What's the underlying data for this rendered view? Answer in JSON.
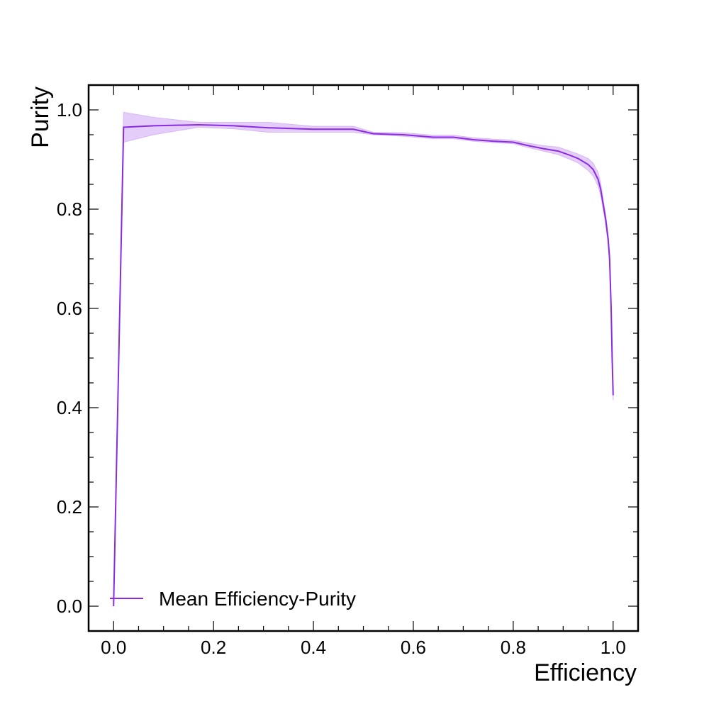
{
  "chart_data": {
    "type": "line",
    "xlabel": "Efficiency",
    "ylabel": "Purity",
    "xlim": [
      -0.05,
      1.05
    ],
    "ylim": [
      -0.05,
      1.05
    ],
    "xticks": [
      0.0,
      0.2,
      0.4,
      0.6,
      0.8,
      1.0
    ],
    "yticks": [
      0.0,
      0.2,
      0.4,
      0.6,
      0.8,
      1.0
    ],
    "xtick_labels": [
      "0.0",
      "0.2",
      "0.4",
      "0.6",
      "0.8",
      "1.0"
    ],
    "ytick_labels": [
      "0.0",
      "0.2",
      "0.4",
      "0.6",
      "0.8",
      "1.0"
    ],
    "grid": false,
    "legend_position": "bottom-left",
    "colors": {
      "line": "#8a2be2",
      "band": "#d9b8f5"
    },
    "series": [
      {
        "name": "Mean Efficiency-Purity",
        "x": [
          0.0,
          0.02,
          0.08,
          0.17,
          0.24,
          0.31,
          0.4,
          0.48,
          0.52,
          0.58,
          0.64,
          0.68,
          0.72,
          0.76,
          0.8,
          0.83,
          0.86,
          0.89,
          0.91,
          0.93,
          0.95,
          0.96,
          0.965,
          0.97,
          0.975,
          0.98,
          0.985,
          0.99,
          0.993,
          0.996,
          0.998,
          1.0
        ],
        "y": [
          0.0,
          0.965,
          0.968,
          0.97,
          0.968,
          0.964,
          0.961,
          0.961,
          0.952,
          0.95,
          0.945,
          0.945,
          0.94,
          0.937,
          0.935,
          0.928,
          0.922,
          0.917,
          0.91,
          0.902,
          0.89,
          0.88,
          0.87,
          0.86,
          0.84,
          0.81,
          0.78,
          0.74,
          0.7,
          0.6,
          0.5,
          0.425
        ],
        "band_lower": [
          0.0,
          0.935,
          0.95,
          0.965,
          0.962,
          0.955,
          0.955,
          0.955,
          0.95,
          0.947,
          0.942,
          0.942,
          0.937,
          0.934,
          0.932,
          0.924,
          0.917,
          0.91,
          0.902,
          0.893,
          0.878,
          0.867,
          0.857,
          0.846,
          0.828,
          0.8,
          0.77,
          0.73,
          0.69,
          0.59,
          0.49,
          0.415
        ],
        "band_upper": [
          0.0,
          0.995,
          0.985,
          0.975,
          0.975,
          0.975,
          0.967,
          0.967,
          0.955,
          0.954,
          0.949,
          0.949,
          0.944,
          0.941,
          0.939,
          0.933,
          0.928,
          0.925,
          0.918,
          0.911,
          0.902,
          0.893,
          0.883,
          0.874,
          0.853,
          0.82,
          0.79,
          0.75,
          0.71,
          0.61,
          0.51,
          0.435
        ]
      }
    ]
  }
}
